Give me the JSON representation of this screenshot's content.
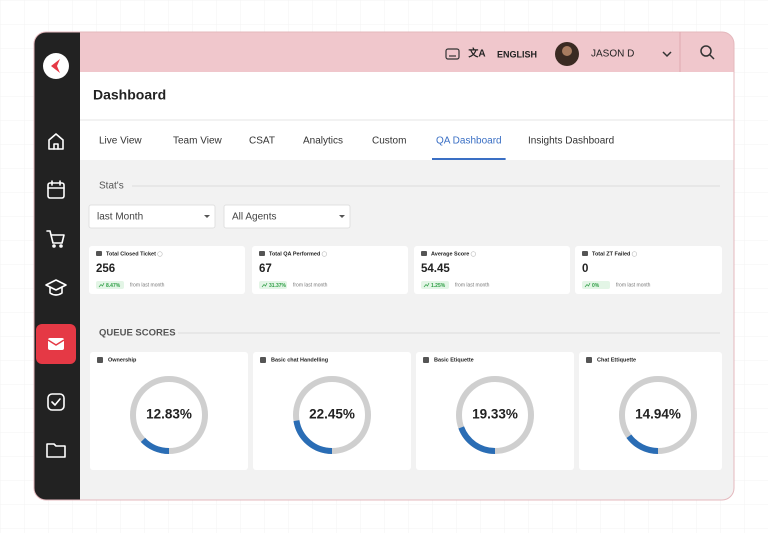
{
  "header": {
    "language": "ENGLISH",
    "user": "JASON D",
    "title": "Dashboard"
  },
  "tabs": {
    "items": [
      "Live View",
      "Team View",
      "CSAT",
      "Analytics",
      "Custom",
      "QA Dashboard",
      "Insights Dashboard"
    ],
    "active": 5
  },
  "stats": {
    "title": "Stat's",
    "filters": [
      "last Month",
      "All Agents"
    ],
    "cards": [
      {
        "label": "Total Closed Ticket",
        "value": "256",
        "change": "8.47%",
        "note": "from last month"
      },
      {
        "label": "Total QA Performed",
        "value": "67",
        "change": "31.37%",
        "note": "from last month"
      },
      {
        "label": "Average Score",
        "value": "54.45",
        "change": "1.25%",
        "note": "from last month"
      },
      {
        "label": "Total ZT Failed",
        "value": "0",
        "change": "0%",
        "note": "from last month"
      }
    ]
  },
  "queue_scores": {
    "title": "QUEUE SCORES",
    "items": [
      {
        "label": "Ownership",
        "value": 12.83,
        "value_label": "12.83%"
      },
      {
        "label": "Basic chat Handelling",
        "value": 22.45,
        "value_label": "22.45%"
      },
      {
        "label": "Basic Etiquette",
        "value": 19.33,
        "value_label": "19.33%"
      },
      {
        "label": "Chat Ettiquette",
        "value": 14.94,
        "value_label": "14.94%"
      }
    ]
  }
}
